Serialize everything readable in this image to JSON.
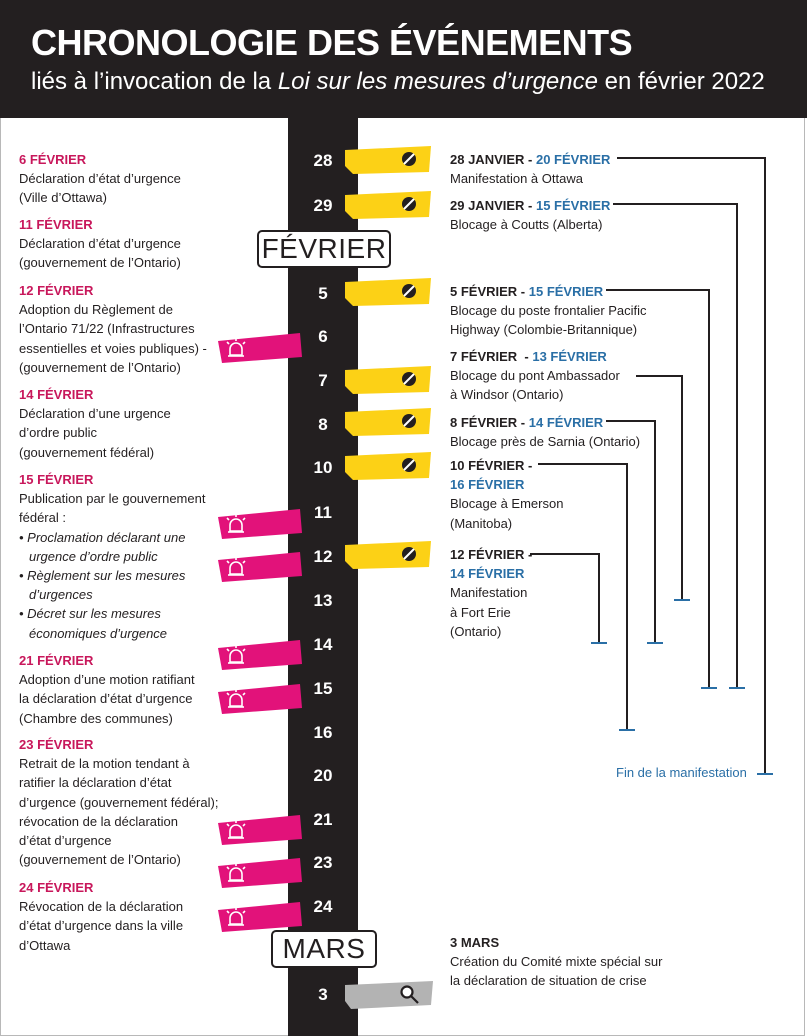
{
  "header": {
    "title": "CHRONOLOGIE DES ÉVÉNEMENTS",
    "subtitle_before": "liés à l’invocation de la ",
    "subtitle_italic": "Loi sur les mesures d’urgence",
    "subtitle_after": " en février 2022"
  },
  "months": {
    "february": "FÉVRIER",
    "march": "MARS"
  },
  "timeline_days": [
    "28",
    "29",
    "5",
    "6",
    "7",
    "8",
    "10",
    "11",
    "12",
    "13",
    "14",
    "15",
    "16",
    "20",
    "21",
    "23",
    "24",
    "3"
  ],
  "left_events": [
    {
      "date": "6 FÉVRIER",
      "lines": [
        "Déclaration d’état d’urgence",
        "(Ville d’Ottawa)"
      ]
    },
    {
      "date": "11 FÉVRIER",
      "lines": [
        "Déclaration d’état d’urgence",
        "(gouvernement de l’Ontario)"
      ]
    },
    {
      "date": "12 FÉVRIER",
      "lines": [
        "Adoption du Règlement de",
        "l’Ontario 71/22 (Infrastructures",
        "essentielles et voies publiques) -",
        "(gouvernement de l’Ontario)"
      ]
    },
    {
      "date": "14 FÉVRIER",
      "lines": [
        "Déclaration d’une urgence",
        "d’ordre public",
        "(gouvernement fédéral)"
      ]
    },
    {
      "date": "15 FÉVRIER",
      "lines": [
        "Publication par le gouvernement",
        "fédéral :",
        "• Proclamation déclarant une",
        "urgence d’ordre public",
        "• Règlement sur les mesures",
        "d’urgences",
        "• Décret sur les mesures",
        "économiques d’urgence"
      ]
    },
    {
      "date": "21 FÉVRIER",
      "lines": [
        "Adoption d’une motion ratifiant",
        "la déclaration d’état d’urgence",
        "(Chambre des communes)"
      ]
    },
    {
      "date": "23 FÉVRIER",
      "lines": [
        "Retrait de la motion tendant à",
        "ratifier la déclaration d’état",
        "d’urgence (gouvernement fédéral);",
        "révocation de la déclaration",
        "d’état d’urgence",
        "(gouvernement de l’Ontario)"
      ]
    },
    {
      "date": "24 FÉVRIER",
      "lines": [
        "Révocation de la déclaration",
        "d’état d’urgence dans la ville",
        "d’Ottawa"
      ]
    }
  ],
  "right_events": [
    {
      "start": "28 JANVIER",
      "sep": " - ",
      "end": "20 FÉVRIER",
      "lines": [
        "Manifestation à Ottawa"
      ]
    },
    {
      "start": "29 JANVIER",
      "sep": " - ",
      "end": "15 FÉVRIER",
      "lines": [
        "Blocage à Coutts (Alberta)"
      ]
    },
    {
      "start": "5 FÉVRIER",
      "sep": " - ",
      "end": "15 FÉVRIER",
      "lines": [
        "Blocage du poste frontalier Pacific",
        "Highway (Colombie-Britannique)"
      ]
    },
    {
      "start": "7 FÉVRIER",
      "sep": "  - ",
      "end": "13 FÉVRIER",
      "lines": [
        "Blocage du pont Ambassador",
        "à Windsor (Ontario)"
      ]
    },
    {
      "start": "8 FÉVRIER",
      "sep": " - ",
      "end": "14 FÉVRIER",
      "lines": [
        "Blocage près de Sarnia (Ontario)"
      ]
    },
    {
      "start": "10 FÉVRIER",
      "sep": " -",
      "end": "16 FÉVRIER",
      "lines": [
        "Blocage à Emerson",
        "(Manitoba)"
      ]
    },
    {
      "start": "12 FÉVRIER",
      "sep": " -",
      "end": "14 FÉVRIER",
      "lines": [
        "Manifestation",
        "à Fort Erie",
        "(Ontario)"
      ]
    }
  ],
  "end_label": "Fin de la manifestation",
  "march_event": {
    "date": "3 MARS",
    "lines": [
      "Création du Comité mixte spécial sur",
      "la déclaration de situation de crise"
    ]
  },
  "tags": [
    {
      "kind": "block",
      "icon": "no-entry-icon",
      "day": "28"
    },
    {
      "kind": "block",
      "icon": "no-entry-icon",
      "day": "29"
    },
    {
      "kind": "block",
      "icon": "no-entry-icon",
      "day": "5"
    },
    {
      "kind": "alarm",
      "icon": "siren-icon",
      "day": "6"
    },
    {
      "kind": "block",
      "icon": "no-entry-icon",
      "day": "7"
    },
    {
      "kind": "block",
      "icon": "no-entry-icon",
      "day": "8"
    },
    {
      "kind": "block",
      "icon": "no-entry-icon",
      "day": "10"
    },
    {
      "kind": "alarm",
      "icon": "siren-icon",
      "day": "11"
    },
    {
      "kind": "alarm",
      "icon": "siren-icon",
      "day": "12"
    },
    {
      "kind": "block",
      "icon": "no-entry-icon",
      "day": "12"
    },
    {
      "kind": "alarm",
      "icon": "siren-icon",
      "day": "14"
    },
    {
      "kind": "alarm",
      "icon": "siren-icon",
      "day": "15"
    },
    {
      "kind": "alarm",
      "icon": "siren-icon",
      "day": "21"
    },
    {
      "kind": "alarm",
      "icon": "siren-icon",
      "day": "23"
    },
    {
      "kind": "alarm",
      "icon": "siren-icon",
      "day": "24"
    },
    {
      "kind": "search",
      "icon": "magnifier-icon",
      "day": "3"
    }
  ],
  "colors": {
    "dark": "#231f20",
    "magenta": "#e2127a",
    "date_magenta": "#c8175b",
    "yellow": "#fcd116",
    "blue": "#2a6fa6",
    "grey_tag": "#b3b3b3"
  }
}
